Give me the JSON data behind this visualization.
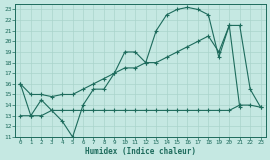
{
  "xlabel": "Humidex (Indice chaleur)",
  "xlim": [
    -0.5,
    23.5
  ],
  "ylim": [
    11,
    23.5
  ],
  "xticks": [
    0,
    1,
    2,
    3,
    4,
    5,
    6,
    7,
    8,
    9,
    10,
    11,
    12,
    13,
    14,
    15,
    16,
    17,
    18,
    19,
    20,
    21,
    22,
    23
  ],
  "yticks": [
    11,
    12,
    13,
    14,
    15,
    16,
    17,
    18,
    19,
    20,
    21,
    22,
    23
  ],
  "bg_color": "#c5e8e2",
  "line_color": "#1d6b5c",
  "grid_color": "#aad4cc",
  "line1_x": [
    0,
    1,
    2,
    3,
    4,
    5,
    6,
    7,
    8,
    9,
    10,
    11,
    12,
    13,
    14,
    15,
    16,
    17,
    18,
    19,
    20,
    21
  ],
  "line1_y": [
    16,
    13,
    14.5,
    13.5,
    12.5,
    11,
    14,
    15.5,
    15.5,
    17,
    19,
    19,
    18,
    21,
    22.5,
    23,
    23.2,
    23,
    22.5,
    18.5,
    21.5,
    13.8
  ],
  "line2_x": [
    0,
    1,
    2,
    3,
    4,
    5,
    6,
    7,
    8,
    9,
    10,
    11,
    12,
    13,
    14,
    15,
    16,
    17,
    18,
    19,
    20,
    21,
    22,
    23
  ],
  "line2_y": [
    16,
    15,
    15,
    14.8,
    15,
    15,
    15.5,
    16,
    16.5,
    17,
    17.5,
    17.5,
    18,
    18,
    18.5,
    19,
    19.5,
    20,
    20.5,
    19,
    21.5,
    21.5,
    15.5,
    13.8
  ],
  "line3_x": [
    0,
    1,
    2,
    3,
    4,
    5,
    6,
    7,
    8,
    9,
    10,
    11,
    12,
    13,
    14,
    15,
    16,
    17,
    18,
    19,
    20,
    21,
    22,
    23
  ],
  "line3_y": [
    13,
    13,
    13,
    13.5,
    13.5,
    13.5,
    13.5,
    13.5,
    13.5,
    13.5,
    13.5,
    13.5,
    13.5,
    13.5,
    13.5,
    13.5,
    13.5,
    13.5,
    13.5,
    13.5,
    13.5,
    14,
    14,
    13.8
  ]
}
